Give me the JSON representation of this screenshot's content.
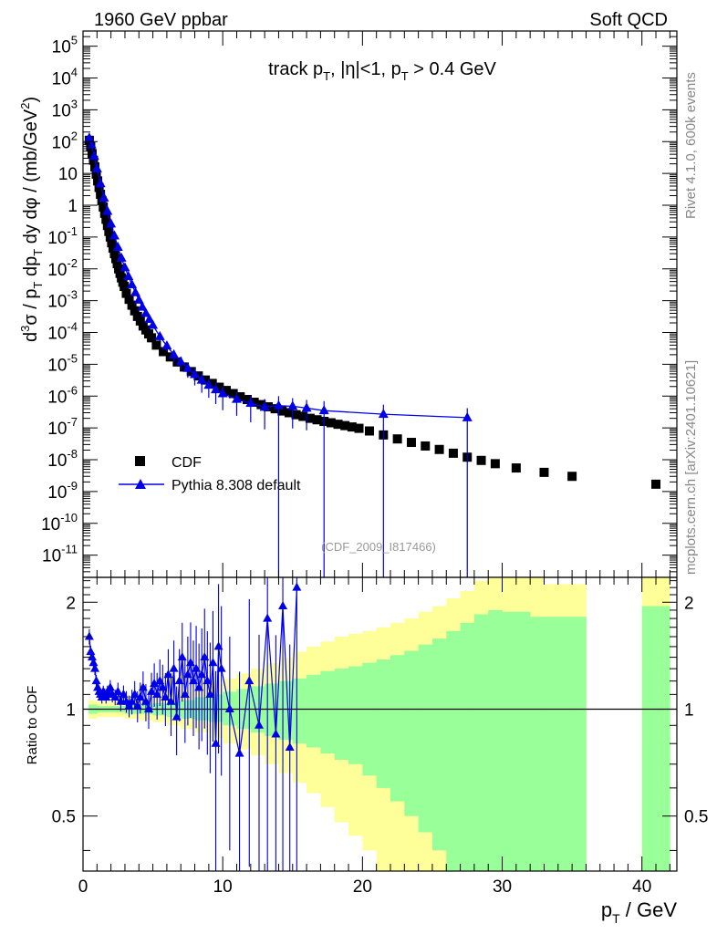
{
  "header": {
    "left": "1960 GeV ppbar",
    "right": "Soft QCD"
  },
  "side_labels": {
    "rivet": "Rivet 4.1.0,  600k events",
    "mcplots": "mcplots.cern.ch [arXiv:2401.10621]"
  },
  "watermark": "(CDF_2009_I817466)",
  "colors": {
    "mc": "#0000e6",
    "data": "#000000",
    "band_outer": "#ffff99",
    "band_inner": "#99ff99"
  },
  "chart_data": [
    {
      "type": "scatter",
      "title": "track pT, |η|<1, pT > 0.4 GeV",
      "title_parts": {
        "a": "track p",
        "a_sub": "T",
        "b": ", |η|<1, p",
        "b_sub": "T",
        "c": " > 0.4 GeV"
      },
      "ylabel": "d³σ / pT dpT dy dφ / (mb/GeV²)",
      "ylabel_parts": {
        "d": "d",
        "d_sup": "3",
        "s1": "σ / p",
        "s1_sub": "T",
        "s2": " dp",
        "s2_sub": "T",
        "s3": " dy dφ / (mb/GeV",
        "s3_sup": "2",
        "s4": ")"
      },
      "yscale": "log",
      "ylim": [
        2e-12,
        300000.0
      ],
      "xlim": [
        0,
        42.5
      ],
      "ytick_exponents": [
        -11,
        -10,
        -9,
        -8,
        -7,
        -6,
        -5,
        -4,
        -3,
        -2,
        -1,
        0,
        1,
        2,
        3,
        4,
        5
      ],
      "ytick_labels_plain": {
        "0": "1",
        "1": "10"
      },
      "legend": {
        "position": "bottom-left",
        "data_label": "CDF",
        "mc_label": "Pythia 8.308 default"
      },
      "series": [
        {
          "name": "CDF",
          "x": [
            0.45,
            0.55,
            0.65,
            0.75,
            0.85,
            0.95,
            1.05,
            1.15,
            1.25,
            1.35,
            1.45,
            1.55,
            1.65,
            1.75,
            1.85,
            1.95,
            2.05,
            2.15,
            2.25,
            2.35,
            2.45,
            2.55,
            2.65,
            2.75,
            2.85,
            2.95,
            3.1,
            3.3,
            3.5,
            3.7,
            3.9,
            4.1,
            4.3,
            4.5,
            4.7,
            4.9,
            5.25,
            5.75,
            6.25,
            6.75,
            7.25,
            7.75,
            8.25,
            8.75,
            9.25,
            9.75,
            10.25,
            10.75,
            11.25,
            11.75,
            12.25,
            12.75,
            13.25,
            13.75,
            14.25,
            14.75,
            15.25,
            15.75,
            16.25,
            16.75,
            17.25,
            17.75,
            18.25,
            18.75,
            19.25,
            19.75,
            20.5,
            21.5,
            22.5,
            23.5,
            24.5,
            25.5,
            26.5,
            27.5,
            28.5,
            29.5,
            31,
            33,
            35,
            41
          ],
          "y": [
            110,
            70,
            42,
            26,
            16,
            9.5,
            5.8,
            3.6,
            2.2,
            1.4,
            0.88,
            0.56,
            0.36,
            0.23,
            0.15,
            0.1,
            0.066,
            0.045,
            0.03,
            0.021,
            0.0145,
            0.01,
            0.0072,
            0.0052,
            0.0038,
            0.0028,
            0.0017,
            0.0011,
            0.00072,
            0.00048,
            0.00032,
            0.00023,
            0.00016,
            0.00012,
            9e-05,
            6.8e-05,
            4e-05,
            2.5e-05,
            1.7e-05,
            1.18e-05,
            8.2e-06,
            5.9e-06,
            4.3e-06,
            3.2e-06,
            2.5e-06,
            1.9e-06,
            1.5e-06,
            1.2e-06,
            9.5e-07,
            7.8e-07,
            6.4e-07,
            5.4e-07,
            4.6e-07,
            4e-07,
            3.4e-07,
            3e-07,
            2.6e-07,
            2.3e-07,
            2e-07,
            1.8e-07,
            1.6e-07,
            1.45e-07,
            1.3e-07,
            1.18e-07,
            1.07e-07,
            9.7e-08,
            8e-08,
            6e-08,
            4.5e-08,
            3.5e-08,
            2.7e-08,
            2.1e-08,
            1.6e-08,
            1.2e-08,
            9.5e-09,
            7.5e-09,
            5.5e-09,
            4e-09,
            3e-09,
            1.7e-09
          ]
        },
        {
          "name": "Pythia 8.308 default",
          "x": [
            0.45,
            0.6,
            0.8,
            1.0,
            1.25,
            1.5,
            1.75,
            2.0,
            2.25,
            2.5,
            2.75,
            3.0,
            3.25,
            3.5,
            3.75,
            4.0,
            4.25,
            4.5,
            4.75,
            5.0,
            5.5,
            6.0,
            6.5,
            7.0,
            7.5,
            8.0,
            8.5,
            9.0,
            9.5,
            10.0,
            11.0,
            12.0,
            13.0,
            14.0,
            15.0,
            16.0,
            17.25,
            21.5,
            27.5
          ],
          "y": [
            130,
            80,
            35,
            14,
            4.8,
            1.7,
            0.65,
            0.26,
            0.11,
            0.048,
            0.022,
            0.011,
            0.0058,
            0.0032,
            0.0018,
            0.00105,
            0.00063,
            0.0004,
            0.00026,
            0.00017,
            7.5e-05,
            3.8e-05,
            2e-05,
            1.2e-05,
            7.5e-06,
            4.8e-06,
            3.2e-06,
            2.2e-06,
            1.6e-06,
            1.2e-06,
            8e-07,
            6e-07,
            4.5e-07,
            5e-07,
            4.8e-07,
            4.2e-07,
            3.5e-07,
            2.7e-07,
            2.1e-07
          ],
          "yerr_rel": [
            0.02,
            0.02,
            0.02,
            0.02,
            0.02,
            0.03,
            0.03,
            0.03,
            0.04,
            0.04,
            0.05,
            0.05,
            0.06,
            0.07,
            0.08,
            0.1,
            0.12,
            0.15,
            0.18,
            0.22,
            0.28,
            0.35,
            0.4,
            0.45,
            0.5,
            0.55,
            0.6,
            0.6,
            0.65,
            0.7,
            0.7,
            0.75,
            0.8,
            0.99,
            0.8,
            0.8,
            0.99,
            0.99,
            0.99
          ]
        }
      ]
    },
    {
      "type": "scatter",
      "ylabel": "Ratio to CDF",
      "xlabel": "pT / GeV",
      "xlabel_parts": {
        "p": "p",
        "p_sub": "T",
        "rest": " / GeV"
      },
      "xlim": [
        0,
        42.5
      ],
      "ylim": [
        0.35,
        2.35
      ],
      "yscale": "log",
      "yticks": [
        0.5,
        1,
        2
      ],
      "ytick_labels": [
        "0.5",
        "1",
        "2"
      ],
      "xticks": [
        0,
        10,
        20,
        30,
        40
      ],
      "xtick_labels": [
        "0",
        "10",
        "20",
        "30",
        "40"
      ],
      "band_edges": [
        0.4,
        1,
        2,
        3,
        4,
        5,
        6,
        7,
        8,
        9,
        10,
        11,
        12,
        13,
        14,
        15,
        16,
        17,
        18,
        19,
        20,
        21,
        22,
        23,
        24,
        25,
        26,
        27,
        28,
        29,
        30,
        31,
        32,
        33,
        34,
        35,
        36
      ],
      "band_outer_lo": [
        0.94,
        0.95,
        0.95,
        0.94,
        0.93,
        0.92,
        0.9,
        0.88,
        0.86,
        0.83,
        0.8,
        0.77,
        0.74,
        0.7,
        0.66,
        0.62,
        0.58,
        0.53,
        0.48,
        0.44,
        0.4,
        0.35,
        0.3,
        0.25,
        0.2,
        0.15,
        0.1,
        0.05,
        0.05,
        0.05,
        0.05,
        0.05,
        0.05,
        0.05,
        0.05,
        0.05
      ],
      "band_outer_hi": [
        1.06,
        1.05,
        1.05,
        1.06,
        1.07,
        1.08,
        1.1,
        1.12,
        1.15,
        1.18,
        1.22,
        1.26,
        1.3,
        1.35,
        1.4,
        1.45,
        1.5,
        1.55,
        1.6,
        1.63,
        1.66,
        1.7,
        1.75,
        1.8,
        1.88,
        1.95,
        2.05,
        2.15,
        2.3,
        2.45,
        2.45,
        2.45,
        2.45,
        2.25,
        2.25,
        2.25
      ],
      "band_inner_lo": [
        0.97,
        0.98,
        0.98,
        0.97,
        0.97,
        0.96,
        0.95,
        0.94,
        0.93,
        0.92,
        0.9,
        0.88,
        0.86,
        0.84,
        0.82,
        0.8,
        0.78,
        0.75,
        0.72,
        0.7,
        0.65,
        0.6,
        0.55,
        0.5,
        0.45,
        0.4,
        0.3,
        0.3,
        0.3,
        0.3,
        0.3,
        0.3,
        0.3,
        0.3,
        0.3,
        0.3
      ],
      "band_inner_hi": [
        1.03,
        1.02,
        1.02,
        1.03,
        1.03,
        1.04,
        1.05,
        1.06,
        1.08,
        1.1,
        1.12,
        1.14,
        1.16,
        1.18,
        1.2,
        1.22,
        1.25,
        1.28,
        1.3,
        1.32,
        1.35,
        1.38,
        1.42,
        1.46,
        1.52,
        1.58,
        1.66,
        1.75,
        1.85,
        1.9,
        1.88,
        1.88,
        1.82,
        1.82,
        1.82,
        1.82
      ],
      "band2_edges": [
        40,
        42
      ],
      "band2_outer_lo": [
        0.05
      ],
      "band2_outer_hi": [
        2.45
      ],
      "band2_inner_lo": [
        0.3
      ],
      "band2_inner_hi": [
        1.95
      ],
      "series": [
        {
          "name": "Pythia 8.308 default",
          "x": [
            0.45,
            0.55,
            0.65,
            0.75,
            0.85,
            0.95,
            1.05,
            1.15,
            1.25,
            1.35,
            1.45,
            1.55,
            1.65,
            1.75,
            1.85,
            1.95,
            2.1,
            2.3,
            2.5,
            2.7,
            2.9,
            3.1,
            3.3,
            3.5,
            3.7,
            3.9,
            4.1,
            4.3,
            4.5,
            4.7,
            4.9,
            5.1,
            5.3,
            5.5,
            5.7,
            5.9,
            6.1,
            6.3,
            6.5,
            6.7,
            6.9,
            7.1,
            7.3,
            7.5,
            7.7,
            7.9,
            8.1,
            8.3,
            8.5,
            8.7,
            8.9,
            9.1,
            9.3,
            9.5,
            9.7,
            9.9,
            10.5,
            11.2,
            11.9,
            12.6,
            13.2,
            13.8,
            14.3,
            14.8,
            15.3
          ],
          "y": [
            1.6,
            1.45,
            1.4,
            1.35,
            1.3,
            1.2,
            1.15,
            1.12,
            1.1,
            1.08,
            1.12,
            1.1,
            1.08,
            1.12,
            1.1,
            1.15,
            1.1,
            1.08,
            1.12,
            1.05,
            1.1,
            1.05,
            1.02,
            1.05,
            1.1,
            1.02,
            1.08,
            1.15,
            1.05,
            1.0,
            1.12,
            1.18,
            1.1,
            1.2,
            1.15,
            1.08,
            1.25,
            1.05,
            1.3,
            0.95,
            1.2,
            1.4,
            1.1,
            1.25,
            1.35,
            1.2,
            1.3,
            1.15,
            1.25,
            1.4,
            1.2,
            1.1,
            1.35,
            0.8,
            1.5,
            1.3,
            1.0,
            0.75,
            1.2,
            0.9,
            1.8,
            0.85,
            1.95,
            0.78,
            2.2
          ],
          "yerr_rel": [
            0.05,
            0.04,
            0.04,
            0.04,
            0.04,
            0.04,
            0.04,
            0.04,
            0.04,
            0.04,
            0.04,
            0.04,
            0.04,
            0.04,
            0.04,
            0.05,
            0.05,
            0.05,
            0.06,
            0.06,
            0.06,
            0.07,
            0.07,
            0.08,
            0.09,
            0.1,
            0.1,
            0.11,
            0.12,
            0.12,
            0.13,
            0.14,
            0.15,
            0.15,
            0.16,
            0.17,
            0.18,
            0.2,
            0.2,
            0.22,
            0.23,
            0.25,
            0.27,
            0.28,
            0.3,
            0.3,
            0.32,
            0.33,
            0.35,
            0.37,
            0.38,
            0.4,
            0.4,
            0.6,
            0.5,
            0.5,
            0.6,
            0.7,
            0.7,
            0.8,
            0.9,
            0.9,
            0.95,
            0.95,
            0.95
          ]
        }
      ]
    }
  ]
}
